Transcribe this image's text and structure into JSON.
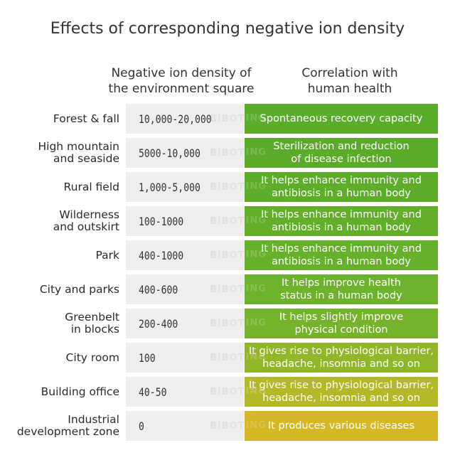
{
  "title": "Effects of corresponding negative ion density",
  "headers": {
    "density": "Negative ion density of\nthe environment square",
    "health": "Correlation with\nhuman health"
  },
  "watermark": "BIBOTING",
  "rows": [
    {
      "place": "Forest & fall",
      "density": "10,000-20,000",
      "health": "Spontaneous recovery capacity",
      "color": "#5aac2a"
    },
    {
      "place": "High mountain\nand seaside",
      "density": "5000-10,000",
      "health": "Sterilization and reduction\nof disease infection",
      "color": "#5bab2a"
    },
    {
      "place": "Rural field",
      "density": "1,000-5,000",
      "health": "It helps enhance immunity and\nantibiosis in a human body",
      "color": "#5dad2b"
    },
    {
      "place": "Wilderness\nand outskirt",
      "density": "100-1000",
      "health": "It helps enhance immunity and\nantibiosis in a human body",
      "color": "#62ae2b"
    },
    {
      "place": "Park",
      "density": "400-1000",
      "health": "It helps enhance immunity and\nantibiosis in a human body",
      "color": "#67b02c"
    },
    {
      "place": "City and parks",
      "density": "400-600",
      "health": "It helps improve health\nstatus in a human body",
      "color": "#6db22c"
    },
    {
      "place": "Greenbelt\nin blocks",
      "density": "200-400",
      "health": "It helps slightly improve\nphysical condition",
      "color": "#76b32c"
    },
    {
      "place": "City room",
      "density": "100",
      "health": "It gives rise to physiological barrier,\nheadache, insomnia and so on",
      "color": "#92b62a"
    },
    {
      "place": "Building office",
      "density": "40-50",
      "health": "It gives rise to physiological barrier,\nheadache, insomnia and so on",
      "color": "#b3b828"
    },
    {
      "place": "Industrial\ndevelopment zone",
      "density": "0",
      "health": "It produces various diseases",
      "color": "#d5b625"
    }
  ]
}
